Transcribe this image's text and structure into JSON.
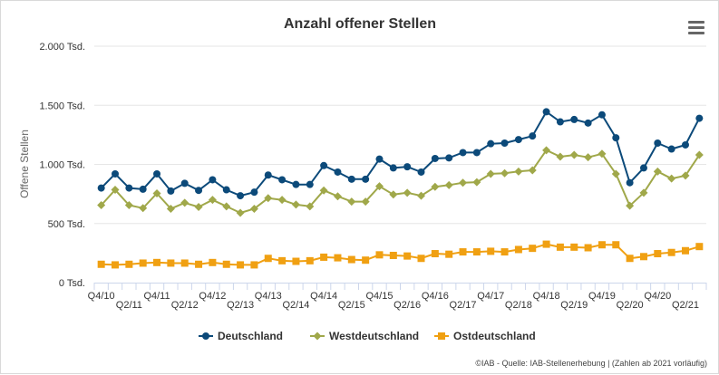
{
  "chart_data": {
    "type": "line",
    "title": "Anzahl offener Stellen",
    "ylabel": "Offene Stellen",
    "ylim": [
      0,
      2000
    ],
    "yticks": [
      0,
      500,
      1000,
      1500,
      2000
    ],
    "ytick_labels": [
      "0 Tsd.",
      "500 Tsd.",
      "1.000 Tsd.",
      "1.500 Tsd.",
      "2.000 Tsd."
    ],
    "x": [
      "Q4/10",
      "Q1/11",
      "Q2/11",
      "Q3/11",
      "Q4/11",
      "Q1/12",
      "Q2/12",
      "Q3/12",
      "Q4/12",
      "Q1/13",
      "Q2/13",
      "Q3/13",
      "Q4/13",
      "Q1/14",
      "Q2/14",
      "Q3/14",
      "Q4/14",
      "Q1/15",
      "Q2/15",
      "Q3/15",
      "Q4/15",
      "Q1/16",
      "Q2/16",
      "Q3/16",
      "Q4/16",
      "Q1/17",
      "Q2/17",
      "Q3/17",
      "Q4/17",
      "Q1/18",
      "Q2/18",
      "Q3/18",
      "Q4/18",
      "Q1/19",
      "Q2/19",
      "Q3/19",
      "Q4/19",
      "Q1/20",
      "Q2/20",
      "Q3/20",
      "Q4/20",
      "Q1/21",
      "Q2/21",
      "Q3/21"
    ],
    "xtick_labels_lower": [
      "Q4/10",
      "Q4/11",
      "Q4/12",
      "Q4/13",
      "Q4/14",
      "Q4/15",
      "Q4/16",
      "Q4/17",
      "Q4/18",
      "Q4/19",
      "Q4/20"
    ],
    "xtick_labels_upper": [
      "Q2/11",
      "Q2/12",
      "Q2/13",
      "Q2/14",
      "Q2/15",
      "Q2/16",
      "Q2/17",
      "Q2/18",
      "Q2/19",
      "Q2/20",
      "Q2/21"
    ],
    "series": [
      {
        "name": "Deutschland",
        "color": "#0c4a7a",
        "marker": "circle",
        "values": [
          800,
          920,
          800,
          790,
          920,
          775,
          840,
          780,
          870,
          785,
          735,
          765,
          910,
          870,
          830,
          830,
          990,
          935,
          875,
          875,
          1045,
          970,
          980,
          935,
          1050,
          1055,
          1100,
          1100,
          1175,
          1180,
          1210,
          1240,
          1445,
          1360,
          1380,
          1350,
          1420,
          1225,
          845,
          970,
          1180,
          1130,
          1165,
          1390
        ]
      },
      {
        "name": "Westdeutschland",
        "color": "#a0a84a",
        "marker": "diamond",
        "values": [
          655,
          785,
          655,
          630,
          755,
          625,
          675,
          640,
          700,
          645,
          590,
          625,
          715,
          700,
          660,
          645,
          780,
          730,
          685,
          685,
          815,
          745,
          760,
          735,
          810,
          825,
          845,
          850,
          920,
          925,
          940,
          950,
          1120,
          1065,
          1080,
          1060,
          1090,
          920,
          650,
          760,
          940,
          880,
          905,
          1080
        ]
      },
      {
        "name": "Ostdeutschland",
        "color": "#f0a012",
        "marker": "square",
        "values": [
          155,
          150,
          155,
          165,
          170,
          165,
          165,
          155,
          170,
          155,
          150,
          150,
          205,
          185,
          180,
          185,
          215,
          210,
          195,
          190,
          235,
          230,
          225,
          205,
          245,
          240,
          260,
          260,
          265,
          260,
          280,
          290,
          325,
          300,
          300,
          295,
          320,
          320,
          205,
          220,
          245,
          255,
          270,
          305
        ]
      }
    ],
    "legend_position": "bottom",
    "grid": true
  },
  "credit": "©IAB - Quelle: IAB-Stellenerhebung | (Zahlen ab 2021 vorläufig)",
  "menu_icon": "hamburger-menu-icon"
}
